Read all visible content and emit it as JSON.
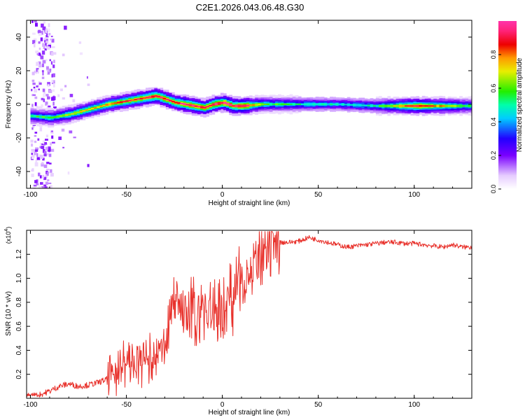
{
  "title": "C2E1.2026.043.06.48.G30",
  "chart_data": [
    {
      "type": "heatmap",
      "title": "C2E1.2026.043.06.48.G30",
      "xlabel": "Height of straight line (km)",
      "ylabel": "Frequency (Hz)",
      "xlim": [
        -102,
        130
      ],
      "ylim": [
        -50,
        50
      ],
      "xticks": [
        -100,
        -50,
        0,
        50,
        100
      ],
      "yticks": [
        -40,
        -20,
        0,
        20,
        40
      ],
      "colorbar": {
        "label": "Normalized spectral amplitude",
        "range": [
          0,
          1
        ],
        "ticks": [
          "0.0",
          "0.2",
          "0.4",
          "0.6",
          "0.8"
        ]
      },
      "ridge": {
        "description": "dominant frequency track vs height",
        "x": [
          -100,
          -90,
          -80,
          -70,
          -60,
          -50,
          -40,
          -35,
          -30,
          -25,
          -20,
          -15,
          -10,
          -5,
          0,
          5,
          10,
          20,
          40,
          60,
          80,
          100,
          130
        ],
        "freq_hz": [
          -7,
          -8,
          -6,
          -3,
          0,
          2,
          4,
          5,
          3,
          1,
          0,
          -1,
          -2,
          0,
          1,
          -1,
          -1,
          0,
          0,
          0,
          -1,
          -1,
          -1
        ],
        "peak_amplitude": [
          0.55,
          0.6,
          0.7,
          0.75,
          0.8,
          0.85,
          0.9,
          0.95,
          0.9,
          0.9,
          0.95,
          0.95,
          0.9,
          0.95,
          1.0,
          0.95,
          1.0,
          0.6,
          0.5,
          0.45,
          0.5,
          0.95,
          0.5
        ]
      }
    },
    {
      "type": "line",
      "xlabel": "Height of straight line (km)",
      "ylabel": "SNR (10 * v/v)",
      "y_multiplier": "(x10",
      "y_multiplier_exp": "4",
      "y_multiplier_close": ")",
      "xlim": [
        -102,
        130
      ],
      "ylim": [
        0,
        1.4
      ],
      "xticks": [
        -100,
        -50,
        0,
        50,
        100
      ],
      "yticks": [
        0.2,
        0.4,
        0.6,
        0.8,
        1.0,
        1.2
      ],
      "series": [
        {
          "name": "SNR",
          "color": "#e8312b",
          "x": [
            -102,
            -95,
            -90,
            -85,
            -80,
            -75,
            -70,
            -65,
            -60,
            -55,
            -50,
            -45,
            -40,
            -35,
            -30,
            -27,
            -25,
            -22,
            -20,
            -15,
            -10,
            -5,
            0,
            5,
            10,
            15,
            20,
            25,
            30,
            35,
            40,
            45,
            50,
            55,
            60,
            65,
            70,
            75,
            80,
            85,
            90,
            95,
            100,
            105,
            110,
            115,
            120,
            125,
            130
          ],
          "y": [
            0.02,
            0.03,
            0.06,
            0.1,
            0.12,
            0.1,
            0.11,
            0.13,
            0.16,
            0.25,
            0.3,
            0.28,
            0.32,
            0.3,
            0.45,
            0.7,
            0.85,
            0.8,
            0.65,
            0.7,
            0.75,
            0.7,
            0.75,
            0.85,
            1.0,
            1.05,
            1.15,
            1.22,
            1.3,
            1.3,
            1.31,
            1.34,
            1.32,
            1.3,
            1.28,
            1.26,
            1.27,
            1.28,
            1.29,
            1.3,
            1.3,
            1.29,
            1.29,
            1.28,
            1.27,
            1.26,
            1.28,
            1.26,
            1.26
          ]
        }
      ]
    }
  ]
}
